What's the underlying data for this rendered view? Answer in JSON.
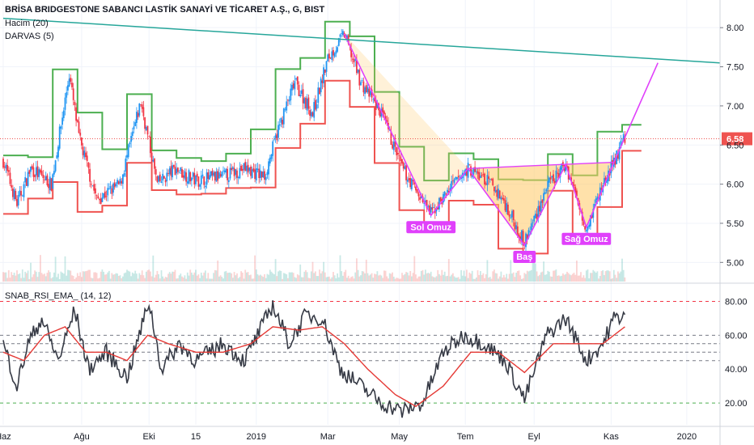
{
  "legend": {
    "title": "BRİSA BRIDGESTONE SABANCI LASTİK SANAYİ VE TİCARET A.Ş., G, BIST",
    "volume": "Hacim (20)",
    "darvas": "DARVAS (5)",
    "oscillator": "SNAB_RSI_EMA_ (14, 12)"
  },
  "colors": {
    "up": "#2196f3",
    "down": "#f23645",
    "darvas_top": "#4caf50",
    "darvas_bottom": "#ef5350",
    "pattern": "#e040fb",
    "fill": "#ffc864",
    "trend": "#26a69a",
    "rsi": "#363a45",
    "ema": "#e53935",
    "price_tag": "#ef5350",
    "grid": "#f0f3fa"
  },
  "chart_data": [
    {
      "type": "candlestick",
      "x_axis": {
        "ticks": [
          "Haz",
          "Ağu",
          "Eki",
          "15",
          "2019",
          "Mar",
          "May",
          "Tem",
          "Eyl",
          "Kas",
          "2020"
        ],
        "tick_index": [
          0,
          57,
          106,
          140,
          184,
          236,
          288,
          336,
          386,
          442,
          497
        ]
      },
      "y_axis": {
        "ticks": [
          "5.00",
          "5.50",
          "6.00",
          "6.50",
          "7.00",
          "7.50",
          "8.00"
        ],
        "range": [
          4.9,
          8.25
        ]
      },
      "last_price": "6.58",
      "trendline": {
        "from": [
          0,
          8.12
        ],
        "to": [
          521,
          7.55
        ]
      },
      "pattern_labels": [
        "Sol Omuz",
        "Baş",
        "Sağ Omuz"
      ],
      "head_and_shoulders": {
        "peak": [
          248,
          7.92
        ],
        "left_shoulder": [
          311,
          5.6
        ],
        "neck_left": [
          338,
          6.2
        ],
        "head": [
          379,
          5.22
        ],
        "neck_right": [
          409,
          6.25
        ],
        "right_shoulder": [
          424,
          5.45
        ],
        "neck_right2": [
          444,
          6.28
        ],
        "target": [
          476,
          7.55
        ]
      },
      "ohlc_anchors": [
        [
          0,
          6.3
        ],
        [
          10,
          5.75
        ],
        [
          20,
          6.2
        ],
        [
          35,
          6.0
        ],
        [
          48,
          7.4
        ],
        [
          55,
          6.6
        ],
        [
          68,
          5.8
        ],
        [
          85,
          6.0
        ],
        [
          100,
          7.05
        ],
        [
          112,
          6.0
        ],
        [
          125,
          6.2
        ],
        [
          140,
          6.05
        ],
        [
          160,
          6.1
        ],
        [
          175,
          6.2
        ],
        [
          190,
          6.1
        ],
        [
          200,
          6.7
        ],
        [
          212,
          7.3
        ],
        [
          225,
          6.9
        ],
        [
          236,
          7.6
        ],
        [
          248,
          7.92
        ],
        [
          260,
          7.3
        ],
        [
          275,
          6.9
        ],
        [
          290,
          6.2
        ],
        [
          311,
          5.62
        ],
        [
          325,
          5.95
        ],
        [
          338,
          6.2
        ],
        [
          355,
          6.0
        ],
        [
          365,
          5.75
        ],
        [
          379,
          5.25
        ],
        [
          395,
          5.95
        ],
        [
          409,
          6.25
        ],
        [
          424,
          5.45
        ],
        [
          436,
          6.0
        ],
        [
          444,
          6.28
        ],
        [
          452,
          6.6
        ]
      ]
    },
    {
      "type": "line",
      "y_axis": {
        "ticks": [
          "20.00",
          "40.00",
          "60.00",
          "80.00"
        ],
        "range": [
          10,
          85
        ]
      },
      "reference_lines": [
        80,
        60,
        55,
        50,
        45,
        20
      ],
      "series_anchors": {
        "rsi": [
          [
            0,
            55
          ],
          [
            10,
            30
          ],
          [
            18,
            55
          ],
          [
            28,
            70
          ],
          [
            40,
            45
          ],
          [
            52,
            75
          ],
          [
            62,
            40
          ],
          [
            75,
            50
          ],
          [
            90,
            35
          ],
          [
            106,
            80
          ],
          [
            115,
            40
          ],
          [
            128,
            55
          ],
          [
            140,
            45
          ],
          [
            160,
            55
          ],
          [
            175,
            45
          ],
          [
            185,
            60
          ],
          [
            196,
            78
          ],
          [
            208,
            55
          ],
          [
            220,
            72
          ],
          [
            232,
            70
          ],
          [
            245,
            40
          ],
          [
            260,
            30
          ],
          [
            275,
            20
          ],
          [
            290,
            15
          ],
          [
            305,
            20
          ],
          [
            320,
            50
          ],
          [
            335,
            60
          ],
          [
            350,
            55
          ],
          [
            365,
            45
          ],
          [
            379,
            22
          ],
          [
            395,
            60
          ],
          [
            409,
            70
          ],
          [
            424,
            45
          ],
          [
            436,
            55
          ],
          [
            444,
            70
          ],
          [
            452,
            72
          ]
        ],
        "ema": [
          [
            0,
            50
          ],
          [
            15,
            45
          ],
          [
            30,
            60
          ],
          [
            45,
            65
          ],
          [
            60,
            50
          ],
          [
            75,
            50
          ],
          [
            90,
            45
          ],
          [
            105,
            60
          ],
          [
            120,
            55
          ],
          [
            140,
            50
          ],
          [
            160,
            50
          ],
          [
            180,
            55
          ],
          [
            196,
            65
          ],
          [
            215,
            63
          ],
          [
            232,
            65
          ],
          [
            248,
            55
          ],
          [
            265,
            40
          ],
          [
            285,
            25
          ],
          [
            300,
            18
          ],
          [
            320,
            30
          ],
          [
            340,
            50
          ],
          [
            360,
            50
          ],
          [
            379,
            38
          ],
          [
            400,
            55
          ],
          [
            420,
            55
          ],
          [
            436,
            55
          ],
          [
            452,
            65
          ]
        ]
      }
    }
  ]
}
